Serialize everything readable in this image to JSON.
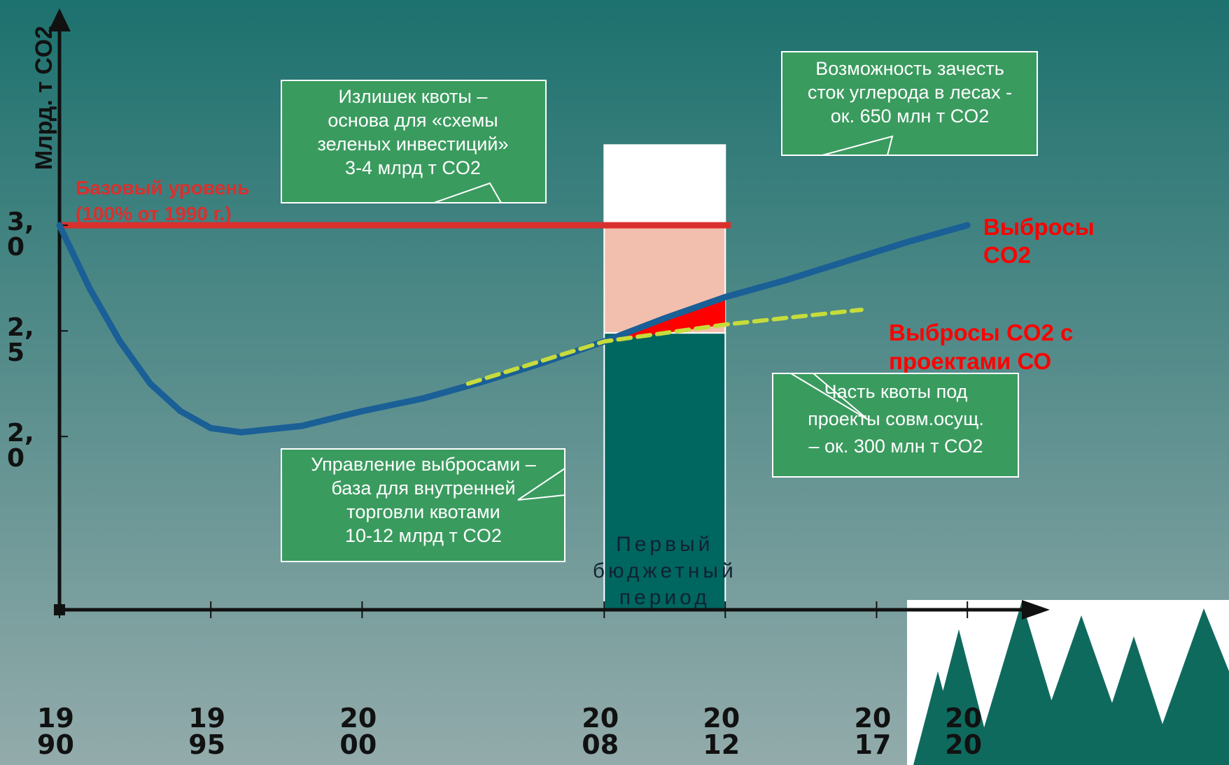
{
  "chart_data": {
    "type": "line",
    "y_label": "Млрд. т CO2",
    "xlim": [
      1990,
      2021.8
    ],
    "ylim": [
      1.18,
      4.0
    ],
    "xticks": [
      1990,
      1995,
      2000,
      2008,
      2012,
      2017,
      2020
    ],
    "yticks": [
      {
        "value": 3.0,
        "label": "3,0"
      },
      {
        "value": 2.5,
        "label": "2,5"
      },
      {
        "value": 2.0,
        "label": "2,0"
      }
    ],
    "series": [
      {
        "name": "Выбросы CO2",
        "color": "#1a5f96",
        "style": "solid",
        "x": [
          1990,
          1991,
          1992,
          1993,
          1994,
          1995,
          1996,
          1998,
          2000,
          2002,
          2004,
          2006,
          2008,
          2010,
          2012,
          2014,
          2016,
          2018,
          2020
        ],
        "values": [
          3.0,
          2.7,
          2.45,
          2.25,
          2.12,
          2.04,
          2.02,
          2.05,
          2.12,
          2.18,
          2.26,
          2.35,
          2.45,
          2.56,
          2.66,
          2.74,
          2.83,
          2.92,
          3.0
        ]
      },
      {
        "name": "Выбросы CO2 с проектами СО",
        "color": "#c6dc3a",
        "style": "dashed",
        "x": [
          2003.5,
          2008,
          2012,
          2016.5
        ],
        "values": [
          2.25,
          2.45,
          2.53,
          2.6
        ]
      }
    ],
    "baseline": {
      "value": 3.0,
      "start": 1990,
      "end": 2012,
      "color": "#d9302e",
      "label_lines": [
        "Базовый уровень",
        "(100% от 1990 г.)"
      ]
    },
    "budget_period": {
      "start": 2008,
      "end": 2012,
      "levels": [
        3.38,
        3.0,
        2.49
      ],
      "colors": [
        "#ffffff",
        "#f2bfae",
        "#006660"
      ],
      "label_lines": [
        "Первый",
        "бюджетный",
        "период"
      ]
    },
    "callouts": [
      {
        "lines": [
          "Излишек квоты –",
          "основа для «схемы",
          "зеленых инвестиций»",
          "3-4 млрд т CO2"
        ]
      },
      {
        "lines": [
          "Возможность зачесть",
          "сток углерода в лесах -",
          "ок. 650 млн т CO2"
        ]
      },
      {
        "lines": [
          "Часть квоты под",
          "проекты совм.осущ.",
          "– ок. 300 млн т CO2"
        ]
      },
      {
        "lines": [
          "Управление выбросами –",
          "база для внутренней",
          "торговли квотами",
          "10-12 млрд т CO2"
        ]
      }
    ]
  }
}
